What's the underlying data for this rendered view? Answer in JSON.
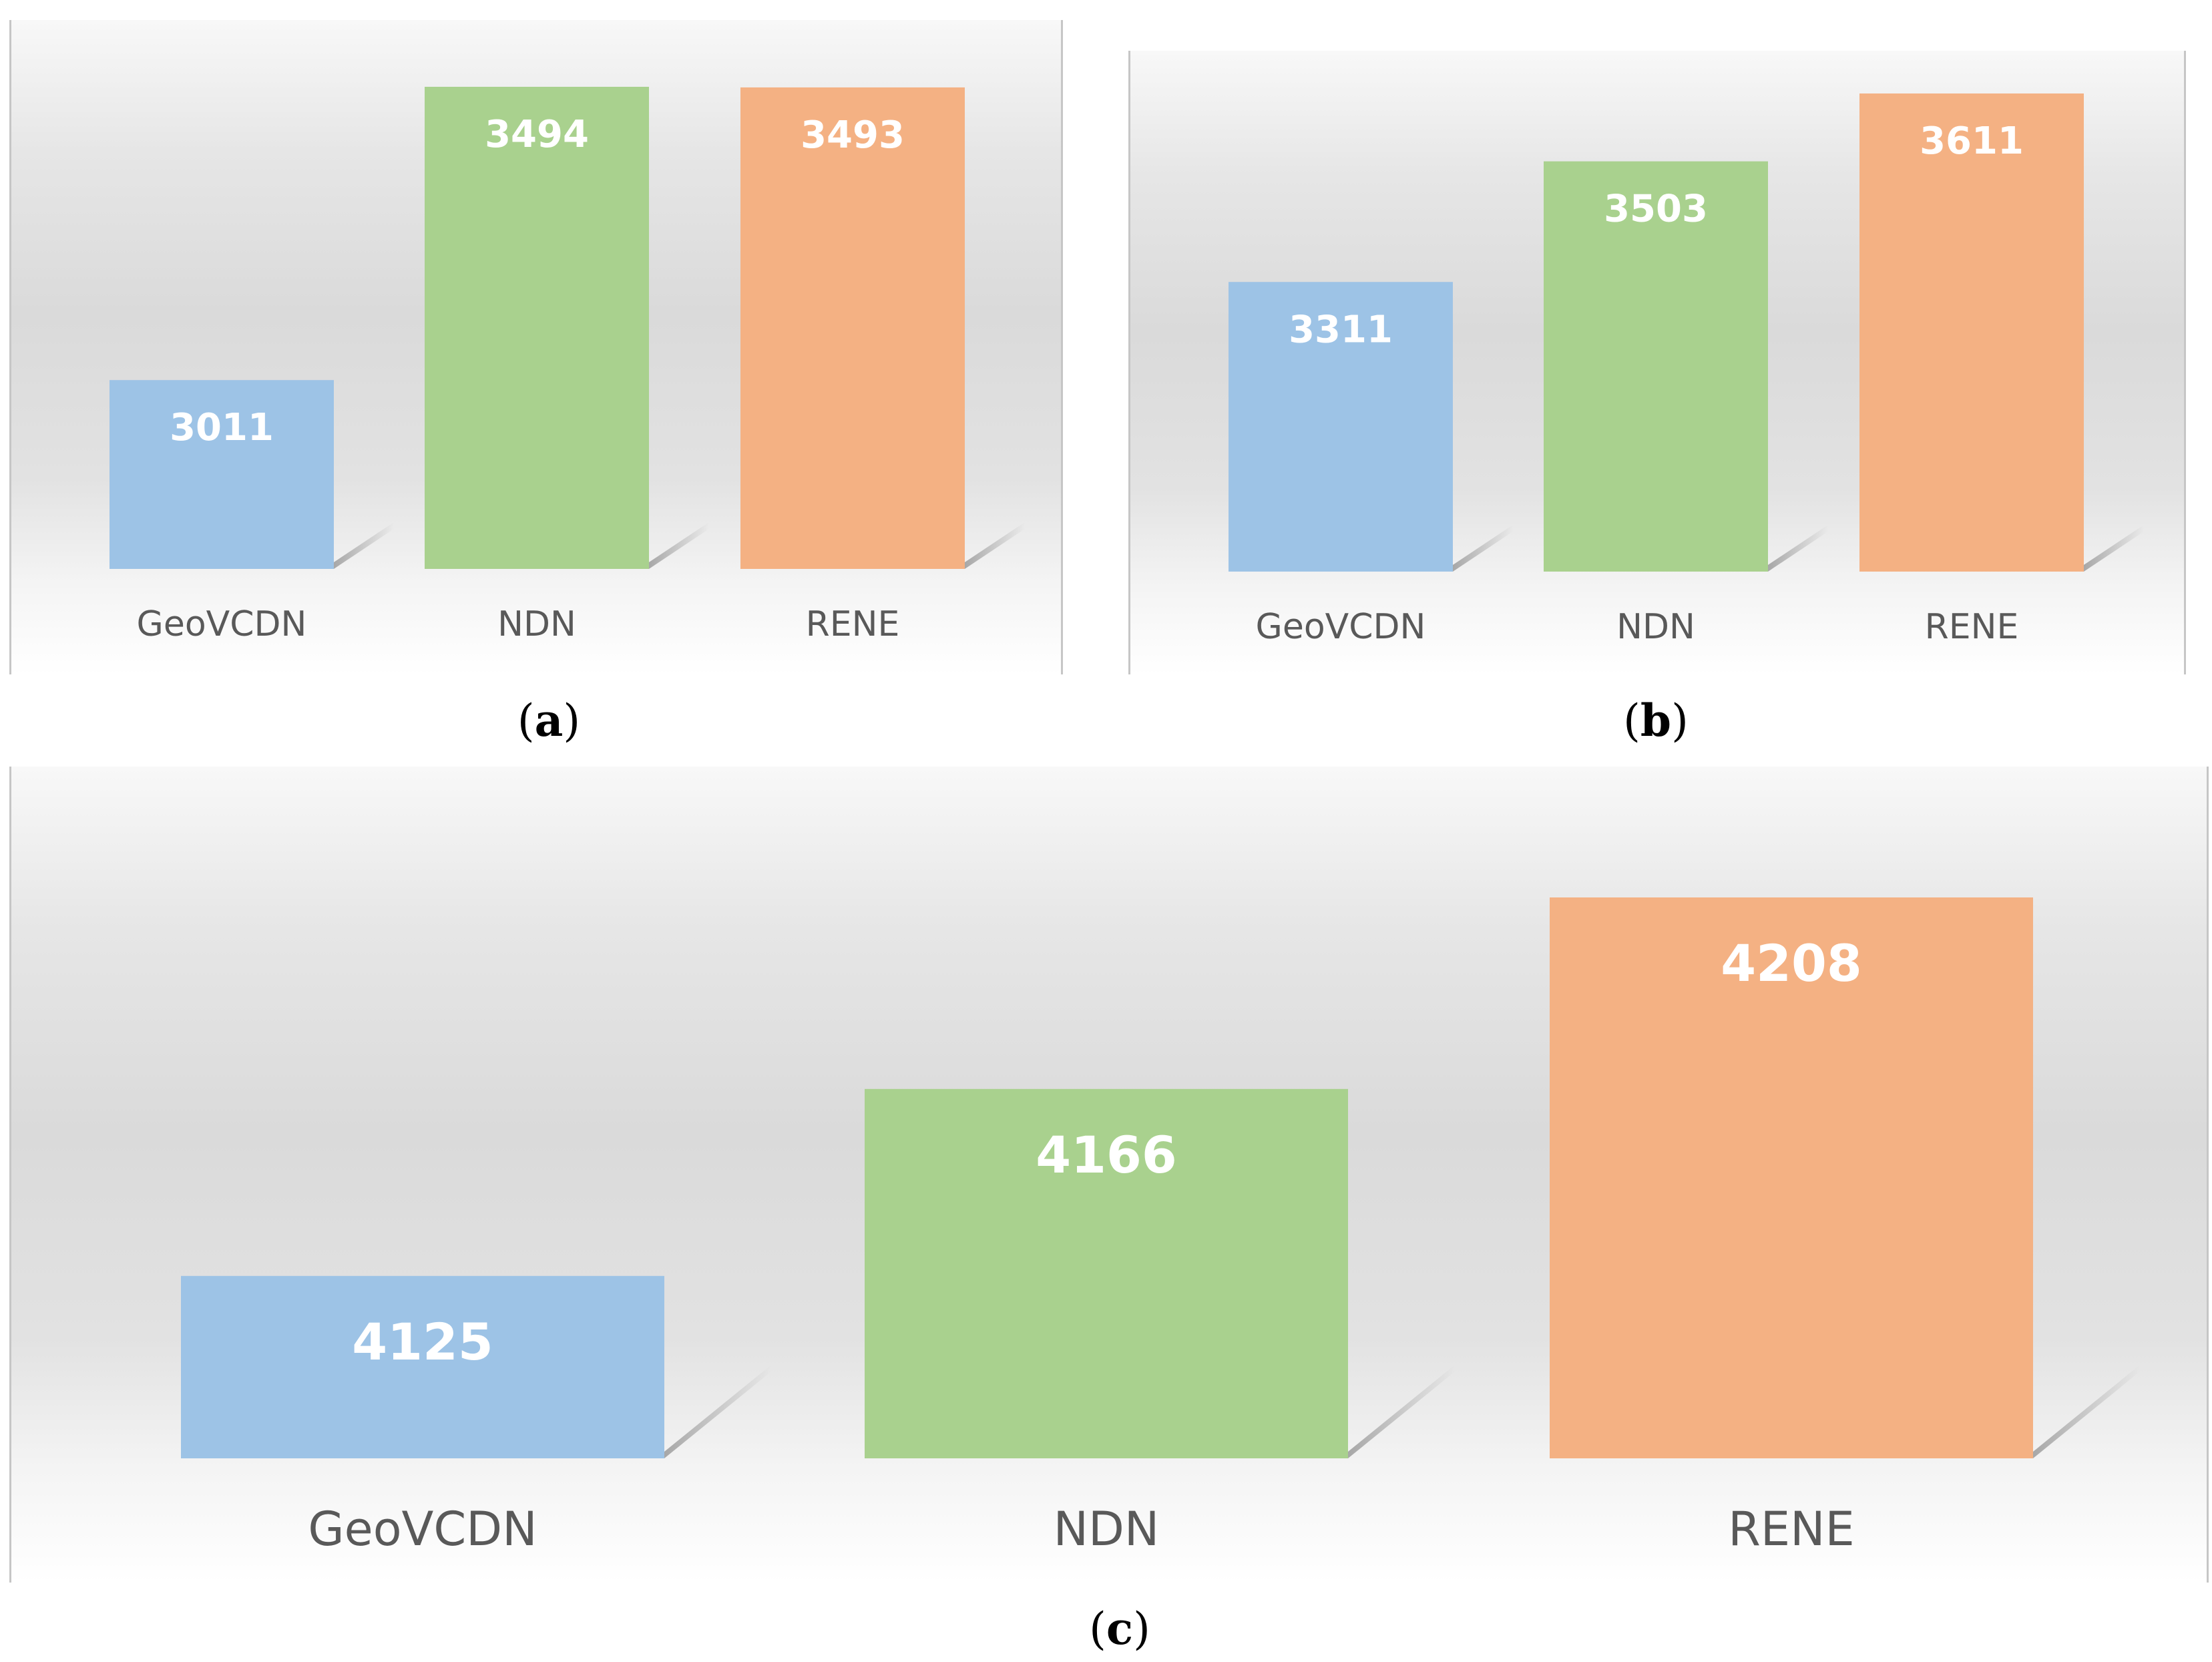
{
  "chart_data": [
    {
      "type": "bar",
      "panel": "a",
      "categories": [
        "GeoVCDN",
        "NDN",
        "RENE"
      ],
      "values": [
        3011,
        3494,
        3493
      ],
      "colors": [
        "#9dc3e6",
        "#a9d18e",
        "#f4b183"
      ],
      "caption": "a"
    },
    {
      "type": "bar",
      "panel": "b",
      "categories": [
        "GeoVCDN",
        "NDN",
        "RENE"
      ],
      "values": [
        3311,
        3503,
        3611
      ],
      "colors": [
        "#9dc3e6",
        "#a9d18e",
        "#f4b183"
      ],
      "caption": "b"
    },
    {
      "type": "bar",
      "panel": "c",
      "categories": [
        "GeoVCDN",
        "NDN",
        "RENE"
      ],
      "values": [
        4125,
        4166,
        4208
      ],
      "colors": [
        "#9dc3e6",
        "#a9d18e",
        "#f4b183"
      ],
      "caption": "c"
    }
  ]
}
